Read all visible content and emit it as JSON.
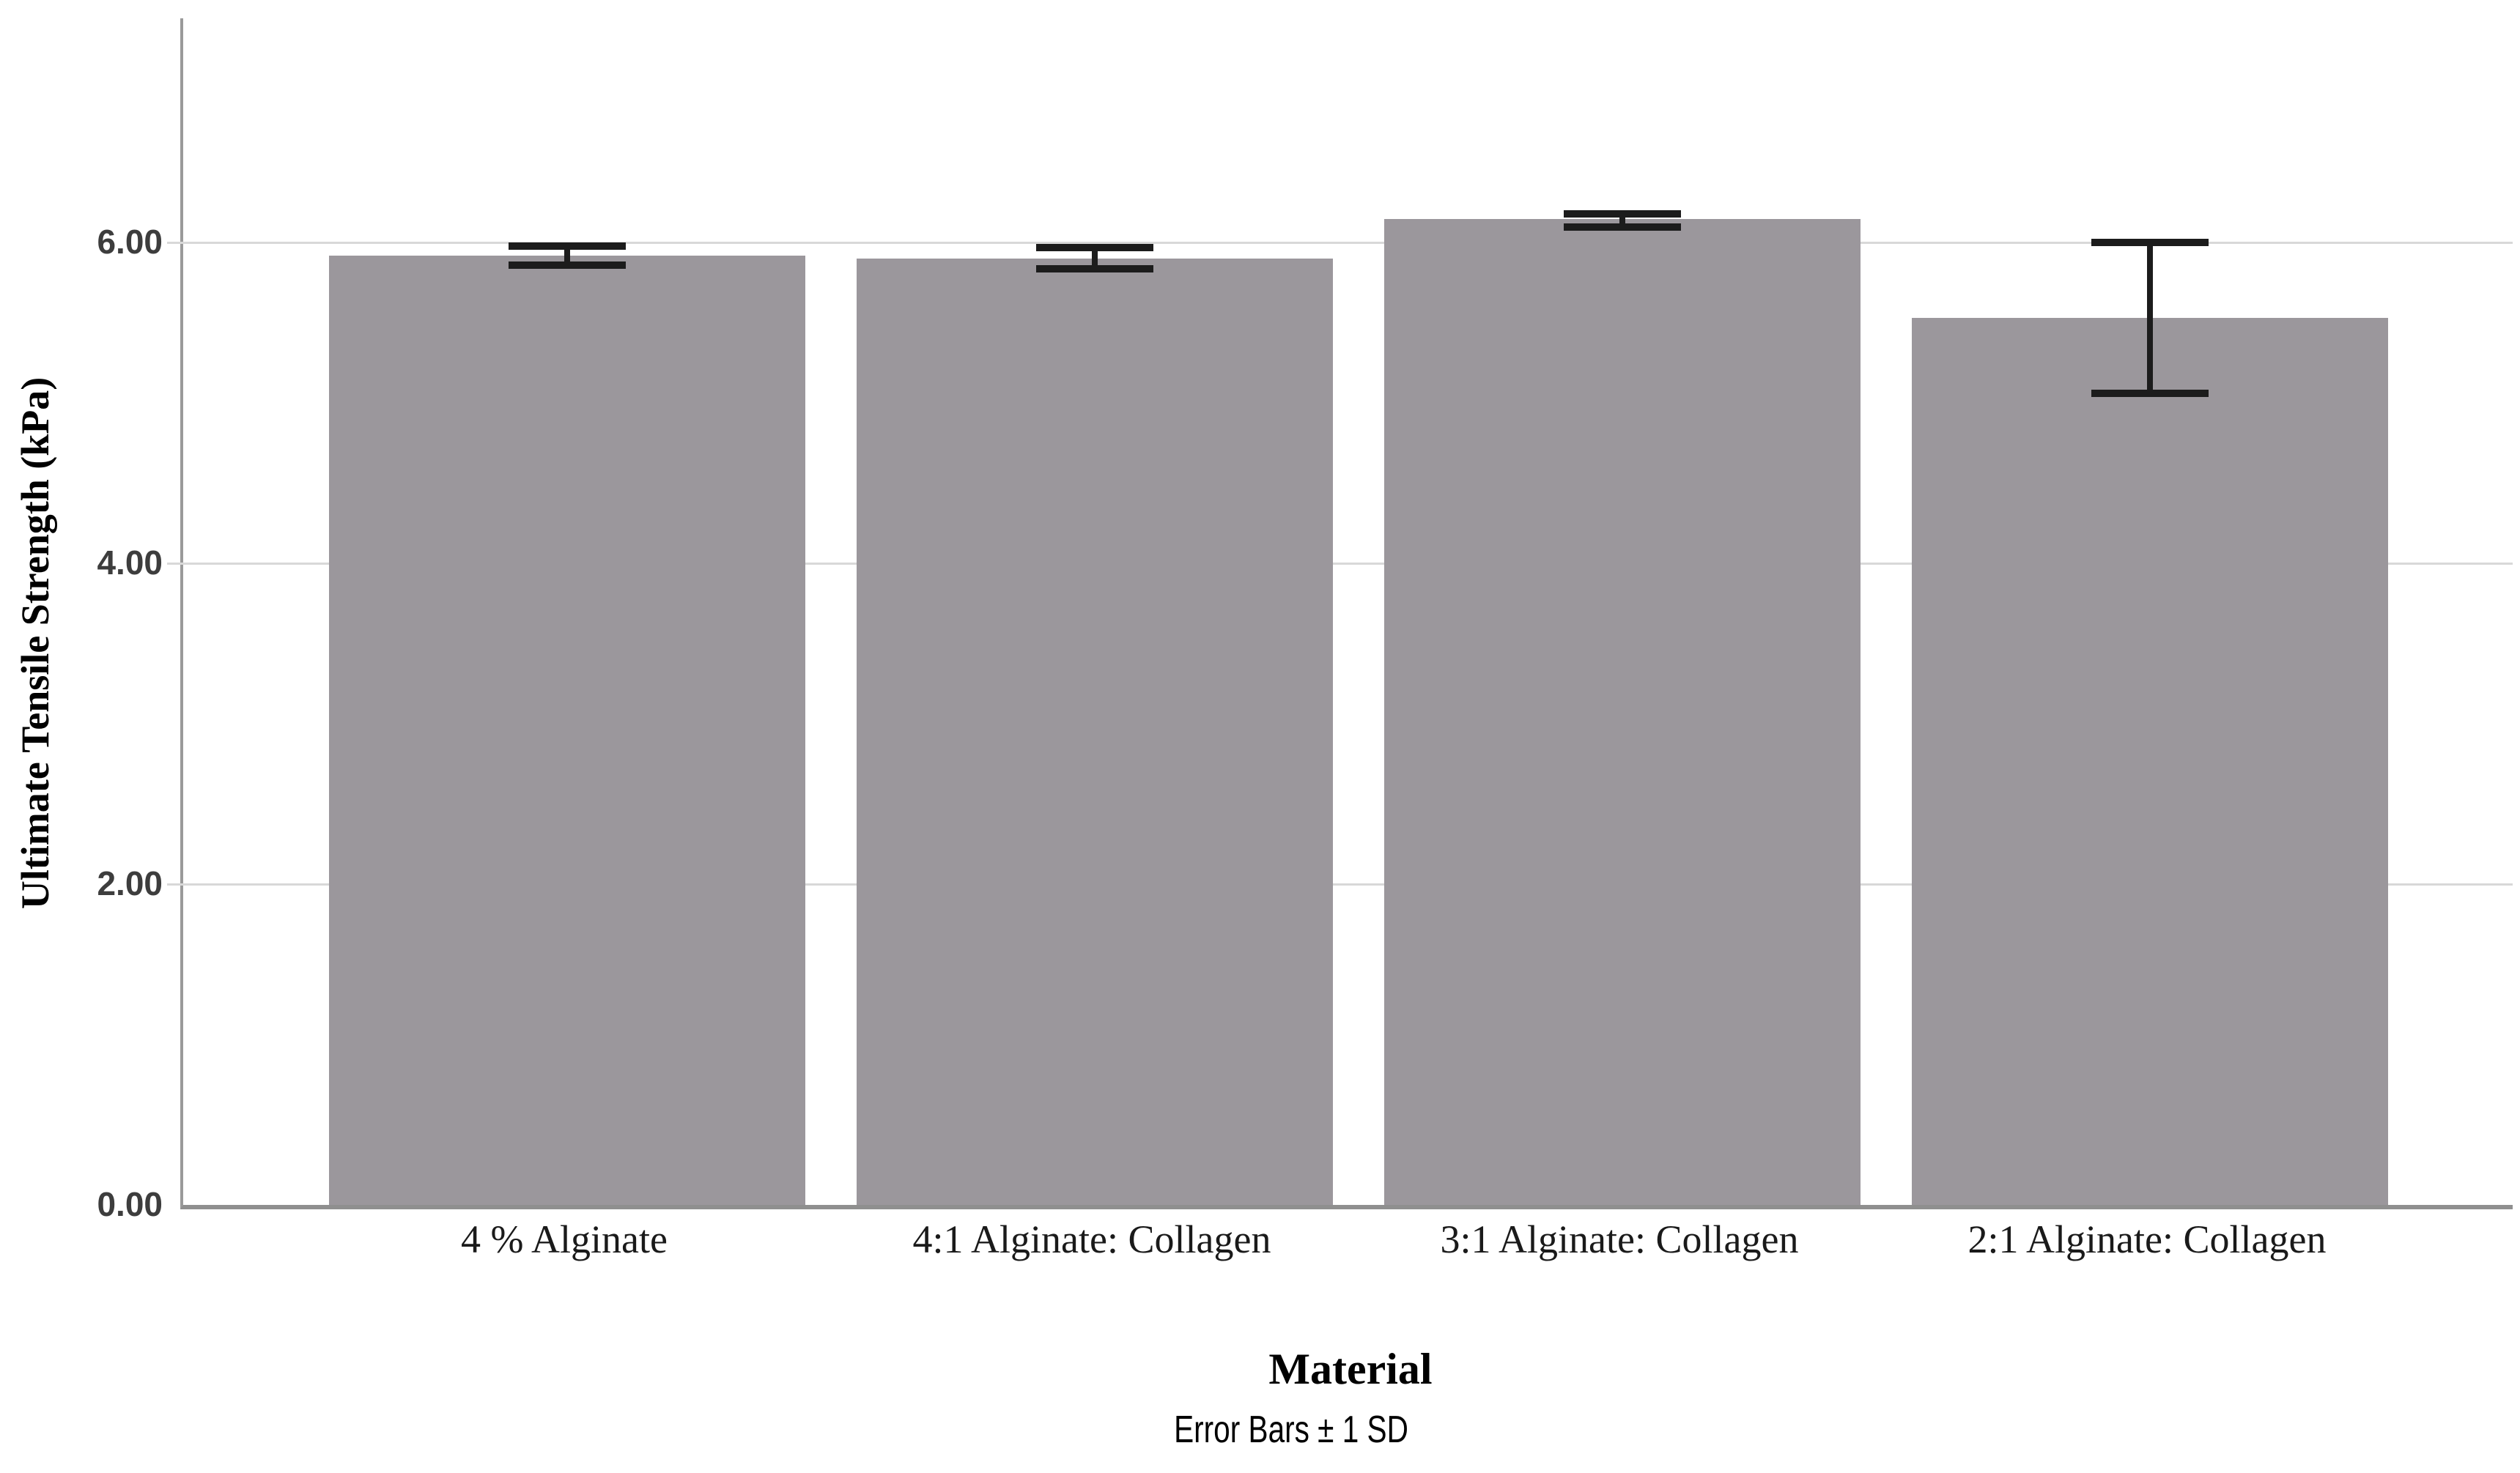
{
  "chart_data": {
    "type": "bar",
    "title": "",
    "xlabel": "Material",
    "ylabel": "Ultimate Tensile Strength (kPa)",
    "caption": "Error Bars ± 1 SD",
    "categories": [
      "4 % Alginate",
      "4:1 Alginate: Collagen",
      "3:1 Alginate: Collagen",
      "2:1 Alginate: Collagen"
    ],
    "values": [
      5.92,
      5.9,
      6.15,
      5.53
    ],
    "error_low": [
      5.86,
      5.84,
      6.1,
      5.06
    ],
    "error_high": [
      5.98,
      5.97,
      6.18,
      6.0
    ],
    "error_bar_definition": "± 1 SD",
    "y_ticks": [
      {
        "label": "0.00",
        "value": 0
      },
      {
        "label": "2.00",
        "value": 2
      },
      {
        "label": "4.00",
        "value": 4
      },
      {
        "label": "6.00",
        "value": 6
      }
    ],
    "ylim": [
      0,
      7.4
    ],
    "grid": "horizontal",
    "legend": "none",
    "colors": {
      "bar_fill": "#9B979C",
      "gridline": "#D8D8D8",
      "y_axis_line": "#9A9A9A",
      "x_axis_line": "#8F8F8F",
      "error_bar": "#1C1C1C",
      "tick_label_text": "#3D3D3D",
      "category_label_text": "#1A1A1A",
      "title_text": "#000000"
    }
  }
}
